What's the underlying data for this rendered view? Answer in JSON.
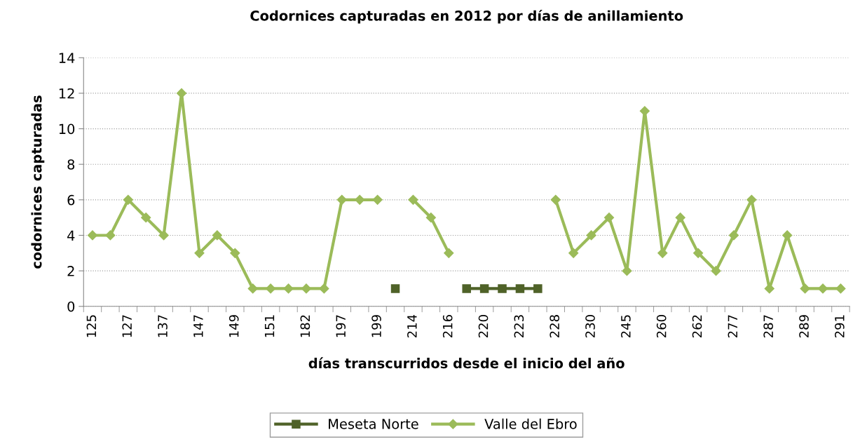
{
  "chart_data": {
    "type": "line",
    "title": "Codornices capturadas en 2012 por días de anillamiento",
    "xlabel": "días transcurridos desde el inicio del año",
    "ylabel": "codornices capturadas",
    "categories": [
      "125",
      null,
      "127",
      null,
      "137",
      null,
      "147",
      null,
      "149",
      null,
      "151",
      null,
      "182",
      null,
      "197",
      null,
      "199",
      null,
      "214",
      null,
      "216",
      null,
      "220",
      null,
      "223",
      null,
      "228",
      null,
      "230",
      null,
      "245",
      null,
      "260",
      null,
      "262",
      null,
      "277",
      null,
      "287",
      null,
      "289",
      null,
      "291"
    ],
    "series": [
      {
        "name": "Meseta Norte",
        "color": "#4f6228",
        "marker": "square",
        "values": [
          null,
          null,
          null,
          null,
          null,
          null,
          null,
          null,
          null,
          null,
          null,
          null,
          null,
          null,
          null,
          null,
          null,
          1,
          null,
          null,
          null,
          1,
          1,
          1,
          1,
          1,
          null,
          null,
          null,
          null,
          null,
          null,
          null,
          null,
          null,
          null,
          null,
          null,
          null,
          null,
          null,
          null,
          null
        ]
      },
      {
        "name": "Valle del Ebro",
        "color": "#9bbb59",
        "marker": "diamond",
        "values": [
          4,
          4,
          6,
          5,
          4,
          12,
          3,
          4,
          3,
          1,
          1,
          1,
          1,
          1,
          6,
          6,
          6,
          null,
          6,
          5,
          3,
          null,
          null,
          null,
          null,
          null,
          6,
          3,
          4,
          5,
          2,
          11,
          3,
          5,
          3,
          2,
          4,
          6,
          1,
          4,
          1,
          1,
          1
        ]
      }
    ],
    "ylim": [
      0,
      14
    ],
    "yticks": [
      0,
      2,
      4,
      6,
      8,
      10,
      12,
      14
    ],
    "grid": "y",
    "legend": "bottom",
    "line_style": "solid"
  }
}
